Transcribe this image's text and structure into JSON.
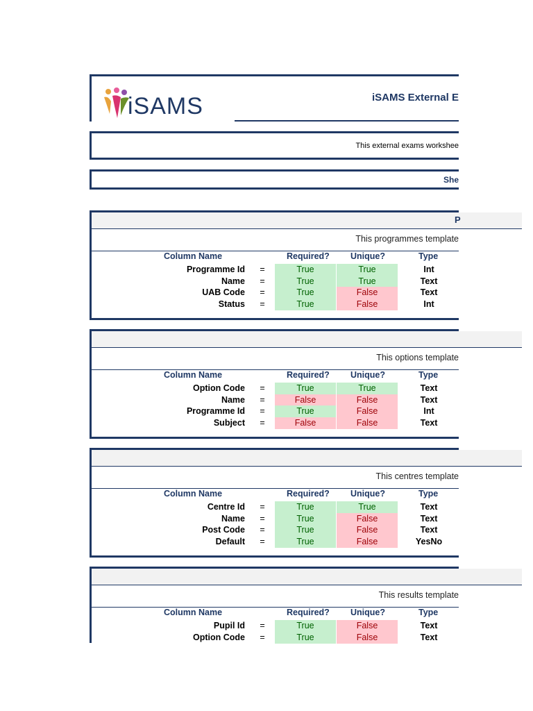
{
  "header": {
    "logo_text": "iSAMS",
    "title": "iSAMS External E",
    "intro": "This external exams workshee",
    "sheet_label": "She"
  },
  "columns": {
    "name": "Column Name",
    "required": "Required?",
    "unique": "Unique?",
    "type": "Type"
  },
  "colors": {
    "navy": "#1f3864",
    "true_bg": "#c6efce",
    "true_text": "#006100",
    "false_bg": "#ffc7ce",
    "false_text": "#9c0006"
  },
  "sections": [
    {
      "band_label": "P",
      "description": "This programmes template",
      "rows": [
        {
          "name": "Programme Id",
          "eq": "=",
          "required": "True",
          "unique": "True",
          "type": "Int"
        },
        {
          "name": "Name",
          "eq": "=",
          "required": "True",
          "unique": "True",
          "type": "Text"
        },
        {
          "name": "UAB Code",
          "eq": "=",
          "required": "True",
          "unique": "False",
          "type": "Text"
        },
        {
          "name": "Status",
          "eq": "=",
          "required": "True",
          "unique": "False",
          "type": "Int"
        }
      ]
    },
    {
      "band_label": "",
      "description": "This options template",
      "rows": [
        {
          "name": "Option Code",
          "eq": "=",
          "required": "True",
          "unique": "True",
          "type": "Text"
        },
        {
          "name": "Name",
          "eq": "=",
          "required": "False",
          "unique": "False",
          "type": "Text"
        },
        {
          "name": "Programme Id",
          "eq": "=",
          "required": "True",
          "unique": "False",
          "type": "Int"
        },
        {
          "name": "Subject",
          "eq": "=",
          "required": "False",
          "unique": "False",
          "type": "Text"
        }
      ]
    },
    {
      "band_label": "",
      "description": "This centres template",
      "rows": [
        {
          "name": "Centre Id",
          "eq": "=",
          "required": "True",
          "unique": "True",
          "type": "Text"
        },
        {
          "name": "Name",
          "eq": "=",
          "required": "True",
          "unique": "False",
          "type": "Text"
        },
        {
          "name": "Post Code",
          "eq": "=",
          "required": "True",
          "unique": "False",
          "type": "Text"
        },
        {
          "name": "Default",
          "eq": "=",
          "required": "True",
          "unique": "False",
          "type": "YesNo"
        }
      ]
    },
    {
      "band_label": "",
      "description": "This results template",
      "rows": [
        {
          "name": "Pupil Id",
          "eq": "=",
          "required": "True",
          "unique": "False",
          "type": "Text"
        },
        {
          "name": "Option Code",
          "eq": "=",
          "required": "True",
          "unique": "False",
          "type": "Text"
        }
      ]
    }
  ]
}
